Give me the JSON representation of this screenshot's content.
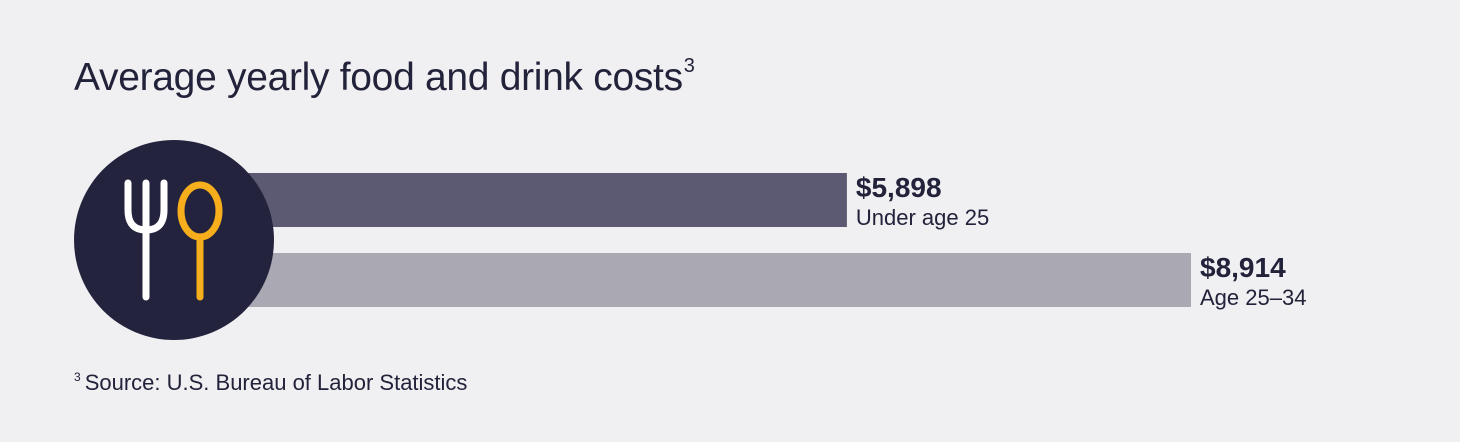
{
  "chart_data": {
    "type": "bar",
    "orientation": "horizontal",
    "title": "Average yearly food and drink costs",
    "title_footnote_marker": "3",
    "categories": [
      "Under age 25",
      "Age 25–34"
    ],
    "values": [
      5898,
      8914
    ],
    "value_labels": [
      "$5,898",
      "$8,914"
    ],
    "colors": [
      "#5b5a72",
      "#a9a8b3"
    ],
    "xlim": [
      0,
      8914
    ],
    "grid": false,
    "legend": "none"
  },
  "footnote": {
    "marker": "3",
    "text": "Source: U.S. Bureau of Labor Statistics"
  },
  "icon": {
    "name": "fork-and-spoon-icon",
    "circle_color": "#24233d",
    "fork_color": "#ffffff",
    "spoon_color": "#f6ae1c"
  },
  "colors": {
    "background": "#f0f0f2",
    "text": "#22223a"
  }
}
